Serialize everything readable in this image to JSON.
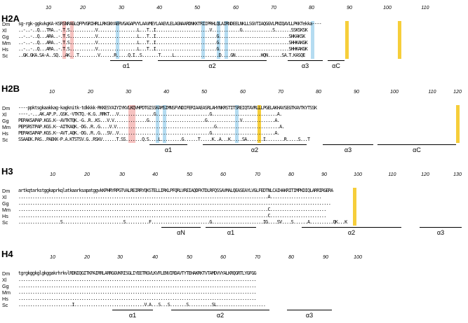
{
  "colors": {
    "blue": "#a8d6ee",
    "yellow": "#f5c518",
    "pink": "#f5b7b5"
  },
  "blocks": [
    {
      "id": "h2a",
      "title": "H2A",
      "ticks": [
        "10",
        "20",
        "30",
        "40",
        "50",
        "60",
        "70",
        "80",
        "90",
        "100",
        "110"
      ],
      "rows": [
        {
          "species": "Dm",
          "seq": "sg-rgk-ggkvkgKA-KSRSNRAGLQFPVGRIHRLLRKGNYAERVGAGAPVYLAAVMEYLAAEVLELAGNAARDNKKTRIIPRHLQLAIRNDEELNKLLSGVTIAQGGVLPNIQAVLLPKKTekka----"
        },
        {
          "species": "Xl",
          "seq": "..-..-..Q...TRA..-.T.S...........V.................L...T..I.......................V............G.............S.......SSKSKSK"
        },
        {
          "species": "Gg",
          "seq": "..-..-..Q...ARA..-.T.S...........V.................L...T..I..........................G..............................SHKAKSK"
        },
        {
          "species": "Mm",
          "seq": "..-..-..Q...ARA..-.T.S...........V.................L...T..I..........................G..............................SHHKAKGK"
        },
        {
          "species": "Hs",
          "seq": "..-..-..Q...ARA..-.T.S...........V.................L...T..I..........................G..............................SHHKAKGK"
        },
        {
          "species": "Sc",
          "seq": "..GK.GKA.SA-A..SQ...AK...T........V......R.....Q.I..S.......T.....L...................D....GN...........HQN......SA.T.KASQE"
        }
      ],
      "helices": [
        "α1",
        "α2",
        "α3",
        "αC"
      ]
    },
    {
      "id": "h2b",
      "title": "H2B",
      "ticks": [
        "10",
        "20",
        "30",
        "40",
        "50",
        "60",
        "70",
        "80",
        "90",
        "100",
        "110",
        "120"
      ],
      "rows": [
        {
          "species": "Dm",
          "seq": "----ppktsgkaakkag-kagknitk-tdkkkk-RKKESYAIYIYKVLKQVHPDTGISSKAMSIMNSFVNDIFERIAAEASRLAHYNKRSTITSREIQTAVRLLLPGELAKHAVSEGTKAVTKYTSSK"
        },
        {
          "species": "Xl",
          "seq": "----.-...AK.AP.P..GSK.-VTKTQ.-K.G..RRKT...V...............G.......................G............................A."
        },
        {
          "species": "Gg",
          "seq": "PEPAKSAPAP.KGS.K--AVTKTQK.-G..R..KS...V.V..............G........................G..............V..............A."
        },
        {
          "species": "Mm",
          "seq": "PEPSRSTPAP.KGS.K--AITKAQK.-DG..R..G....V.V..........................................G...........................A."
        },
        {
          "species": "Hs",
          "seq": "PEPAKSAPAP.KGS.K--AVT.AQK.-DG..R..G...SV..V.......................................G...........................A."
        },
        {
          "species": "Sc",
          "seq": "SSAAEK.PAS..PAEKK-P.A.KTSTSV.G..RSKV......T.SS.......Q.S....L.........G......T.....K..A...K.....SA.......I........R.....S...T"
        }
      ],
      "helices": [
        "α1",
        "α2",
        "α3",
        "αC"
      ]
    },
    {
      "id": "h3",
      "title": "H3",
      "ticks": [
        "10",
        "20",
        "30",
        "40",
        "50",
        "60",
        "70",
        "80",
        "90",
        "100",
        "110",
        "120",
        "130"
      ],
      "rows": [
        {
          "species": "Dm",
          "seq": "artkqtarkstggkaprkqlatkaarksapatggvkKPHRYRPGTVALREIRRYQKSTELLIRKLPFQRLVREIAQDFKTDLRFQSSAVMALQEASEAYLVGLFEDTNLCAIHAKRITIMPKDIQLARRIRGERA"
        },
        {
          "species": "Xl",
          "seq": "...........................................................................................................A......................"
        },
        {
          "species": "Gg",
          "seq": "......................................................................................................................................"
        },
        {
          "species": "Mm",
          "seq": "...........................................................................................................C........................"
        },
        {
          "species": "Hs",
          "seq": "...........................................................................................................C........................"
        },
        {
          "species": "Sc",
          "seq": "..................S..........................S..........F.........................G......................IG....SV....S......A..........QK...K"
        }
      ],
      "helices": [
        "αN",
        "α1",
        "α2",
        "α3"
      ]
    },
    {
      "id": "h4",
      "title": "H4",
      "ticks": [
        "10",
        "20",
        "30",
        "40",
        "50",
        "60",
        "70",
        "80",
        "90",
        "100"
      ],
      "rows": [
        {
          "species": "Dm",
          "seq": "tgrgkggkglgkggakrhrkvlRDNIQGITKPAIRRLARRGGVKRISGLIYEETRGVLKVFLENVIRDAVTYTEHAKRKTVTAMDVVYALKRQGRTLYGFGG"
        },
        {
          "species": "Xl",
          "seq": "......................................................................................................"
        },
        {
          "species": "Gg",
          "seq": "......................................................................................................"
        },
        {
          "species": "Mm",
          "seq": "......................................................................................................"
        },
        {
          "species": "Hs",
          "seq": "......................................................................................................"
        },
        {
          "species": "Sc",
          "seq": ".......................I..............................V.A...S...S.......S..........SL....................."
        }
      ],
      "helices": [
        "α1",
        "α2",
        "α3"
      ]
    }
  ]
}
